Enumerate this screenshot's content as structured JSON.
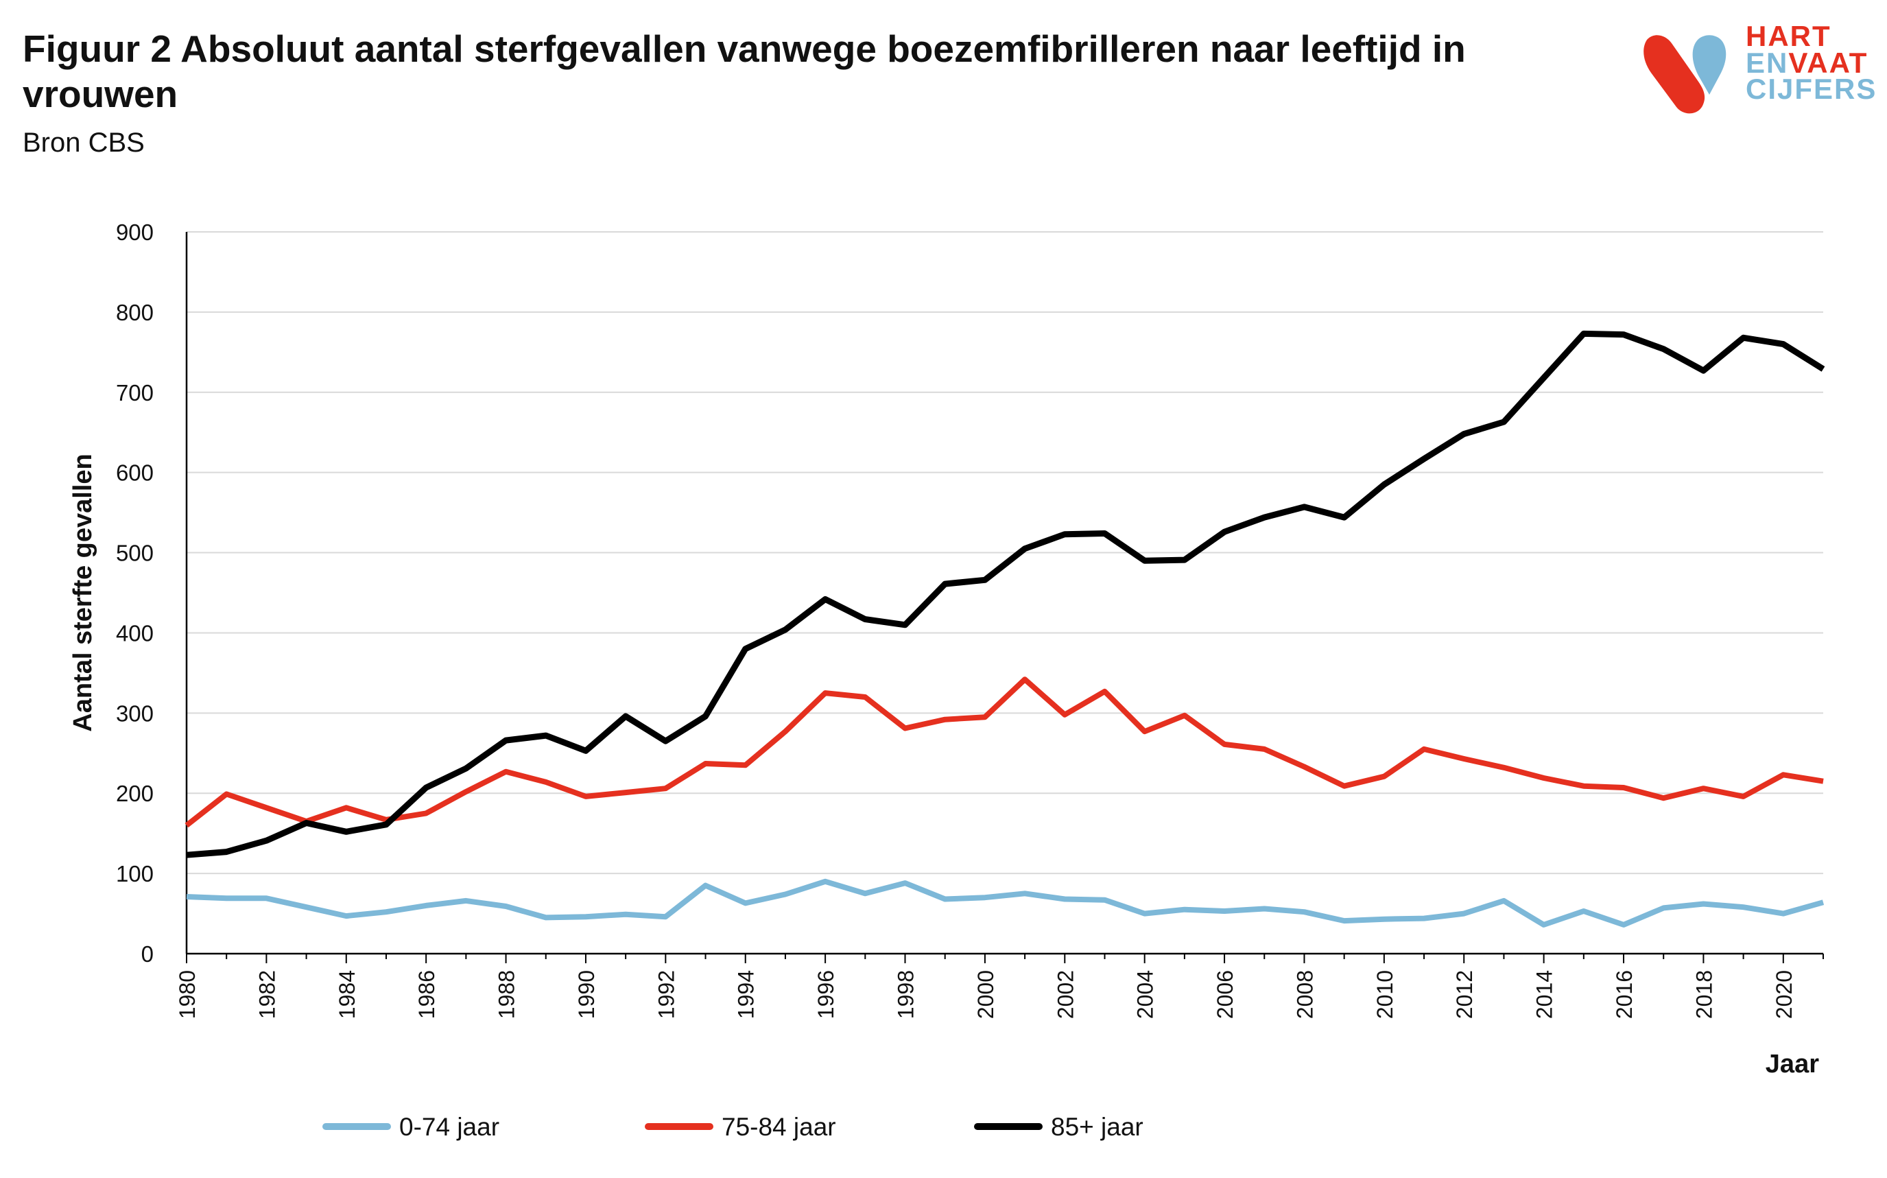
{
  "header": {
    "title": "Figuur 2 Absoluut aantal sterfgevallen vanwege boezemfibrilleren naar leeftijd in vrouwen",
    "source": "Bron CBS"
  },
  "logo": {
    "line1": "HART",
    "line2a": "EN",
    "line2b": "VAAT",
    "line3": "CIJFERS",
    "red": "#e5301f",
    "blue": "#7db8d8",
    "mark": "heart-vessel-logo"
  },
  "chart_data": {
    "type": "line",
    "title": "Figuur 2 Absoluut aantal sterfgevallen vanwege boezemfibrilleren naar leeftijd in vrouwen",
    "subtitle": "Bron CBS",
    "xlabel": "Jaar",
    "ylabel": "Aantal sterfte gevallen",
    "xlim": [
      1980,
      2021
    ],
    "ylim": [
      0,
      900
    ],
    "yticks": [
      0,
      100,
      200,
      300,
      400,
      500,
      600,
      700,
      800,
      900
    ],
    "xticks": [
      1980,
      1982,
      1984,
      1986,
      1988,
      1990,
      1992,
      1994,
      1996,
      1998,
      2000,
      2002,
      2004,
      2006,
      2008,
      2010,
      2012,
      2014,
      2016,
      2018,
      2020
    ],
    "grid": "horizontal",
    "legend_position": "bottom",
    "x": [
      1980,
      1981,
      1982,
      1983,
      1984,
      1985,
      1986,
      1987,
      1988,
      1989,
      1990,
      1991,
      1992,
      1993,
      1994,
      1995,
      1996,
      1997,
      1998,
      1999,
      2000,
      2001,
      2002,
      2003,
      2004,
      2005,
      2006,
      2007,
      2008,
      2009,
      2010,
      2011,
      2012,
      2013,
      2014,
      2015,
      2016,
      2017,
      2018,
      2019,
      2020,
      2021
    ],
    "series": [
      {
        "name": "0-74 jaar",
        "color": "#7db8d8",
        "values": [
          71,
          69,
          69,
          58,
          47,
          52,
          60,
          66,
          59,
          45,
          46,
          49,
          46,
          85,
          63,
          74,
          90,
          75,
          88,
          68,
          70,
          75,
          68,
          67,
          50,
          55,
          53,
          56,
          52,
          41,
          43,
          44,
          50,
          66,
          36,
          53,
          36,
          57,
          62,
          58,
          50,
          64
        ]
      },
      {
        "name": "75-84 jaar",
        "color": "#e5301f",
        "values": [
          160,
          199,
          182,
          165,
          182,
          167,
          175,
          202,
          227,
          214,
          196,
          201,
          206,
          237,
          235,
          277,
          325,
          320,
          281,
          292,
          295,
          342,
          298,
          327,
          277,
          297,
          261,
          255,
          233,
          209,
          221,
          255,
          243,
          232,
          219,
          209,
          207,
          194,
          206,
          196,
          223,
          215
        ]
      },
      {
        "name": "85+ jaar",
        "color": "#000000",
        "values": [
          123,
          127,
          141,
          163,
          152,
          161,
          207,
          231,
          266,
          272,
          253,
          296,
          265,
          296,
          380,
          404,
          442,
          417,
          410,
          461,
          466,
          505,
          523,
          524,
          490,
          491,
          526,
          544,
          557,
          544,
          585,
          617,
          648,
          663,
          718,
          773,
          772,
          754,
          727,
          768,
          760,
          729
        ]
      }
    ]
  }
}
